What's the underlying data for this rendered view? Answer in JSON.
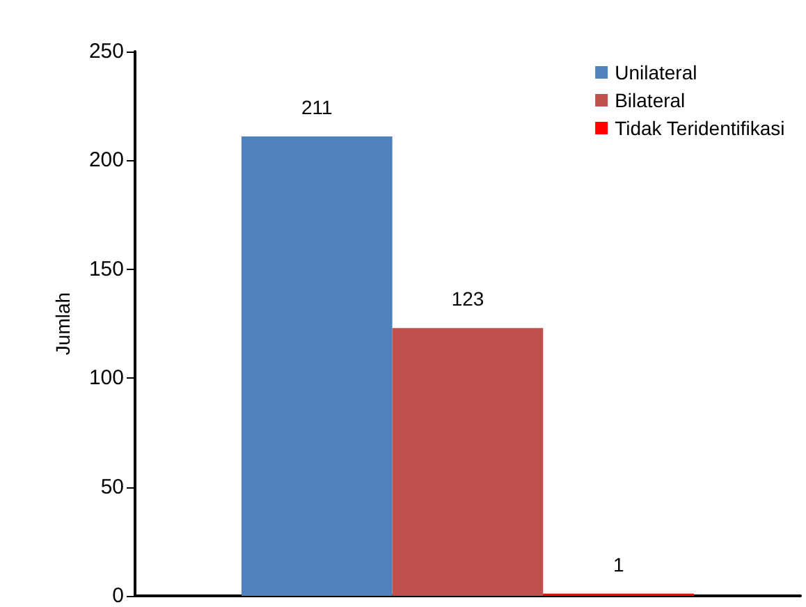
{
  "chart_data": {
    "type": "bar",
    "ylabel": "Jumlah",
    "categories": [
      null
    ],
    "series": [
      {
        "name": "Unilateral",
        "color": "#4f81bd",
        "values": [
          211
        ]
      },
      {
        "name": "Bilateral",
        "color": "#c0504d",
        "values": [
          123
        ]
      },
      {
        "name": "Tidak Teridentifikasi",
        "color": "#ff0000",
        "values": [
          1
        ]
      }
    ],
    "ylim": [
      0,
      250
    ],
    "yticks": [
      0,
      50,
      100,
      150,
      200,
      250
    ],
    "data_labels": true,
    "legend": "top right",
    "grid": false
  }
}
